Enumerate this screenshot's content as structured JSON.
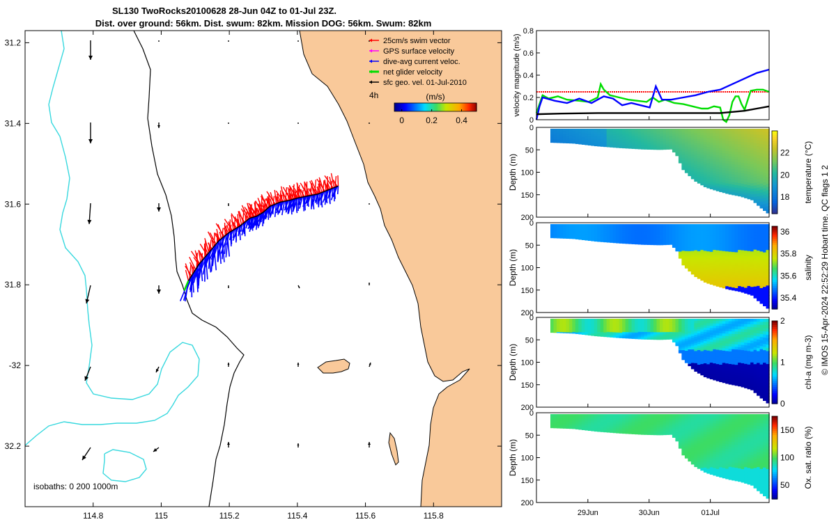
{
  "title": {
    "line1": "SL130 TwoRocks20100628 28-Jun 04Z to 01-Jul 23Z.",
    "line2": "Dist. over ground: 56km. Dist. swum: 82km. Mission DOG: 56km. Swum: 82km"
  },
  "colors": {
    "land": "#f9c99a",
    "isobath_200": "#000000",
    "isobath_1000": "#37d8de",
    "swim": "#ff0000",
    "gps": "#ff00ff",
    "current": "#0000ff",
    "net": "#00dd00",
    "geo": "#000000"
  },
  "map": {
    "xlim": [
      114.6,
      116.0
    ],
    "ylim": [
      -32.35,
      -31.17
    ],
    "x_ticks": [
      114.8,
      115,
      115.2,
      115.4,
      115.6,
      115.8
    ],
    "x_tick_labels": [
      "114.8",
      "115",
      "115.2",
      "115.4",
      "115.6",
      "115.8"
    ],
    "y_ticks": [
      -31.2,
      -31.4,
      -31.6,
      -31.8,
      -32,
      -32.2
    ],
    "y_tick_labels": [
      "31.2",
      "31.4",
      "31.6",
      "31.8",
      "-32",
      "32.2"
    ],
    "isobath_label": "isobaths: 0   200  1000m",
    "time_step_label": "4h",
    "legend": [
      {
        "label": "25cm/s swim vector",
        "color": "#ff0000"
      },
      {
        "label": "GPS surface velocity",
        "color": "#ff00ff"
      },
      {
        "label": "dive-avg current veloc.",
        "color": "#0000ff"
      },
      {
        "label": "net glider velocity",
        "color": "#00dd00"
      },
      {
        "label": "sfc geo. vel. 01-Jul-2010",
        "color": "#000000"
      }
    ],
    "colorbar": {
      "label": "(m/s)",
      "range": [
        -0.05,
        0.5
      ],
      "ticks": [
        0,
        0.2,
        0.4
      ],
      "tick_labels": [
        "0",
        "0.2",
        "0.4"
      ]
    },
    "track": [
      [
        115.08,
        -31.79
      ],
      [
        115.11,
        -31.75
      ],
      [
        115.14,
        -31.72
      ],
      [
        115.17,
        -31.69
      ],
      [
        115.2,
        -31.67
      ],
      [
        115.23,
        -31.655
      ],
      [
        115.26,
        -31.635
      ],
      [
        115.28,
        -31.63
      ],
      [
        115.3,
        -31.62
      ],
      [
        115.32,
        -31.605
      ],
      [
        115.35,
        -31.595
      ],
      [
        115.38,
        -31.59
      ],
      [
        115.4,
        -31.585
      ],
      [
        115.43,
        -31.58
      ],
      [
        115.46,
        -31.575
      ],
      [
        115.49,
        -31.565
      ],
      [
        115.52,
        -31.555
      ]
    ]
  },
  "velocity_panel": {
    "ylabel": "velocity magnitude (m/s)",
    "ylim": [
      0,
      0.8
    ],
    "y_ticks": [
      0,
      0.2,
      0.4,
      0.6,
      0.8
    ],
    "y_tick_labels": [
      "0",
      "0.2",
      "0.4",
      "0.6",
      "0.8"
    ],
    "series": [
      {
        "name": "swim speed",
        "color": "#ff0000",
        "t": [
          0.0,
          3.8
        ],
        "v": [
          0.25,
          0.25
        ]
      },
      {
        "name": "net glider velocity",
        "color": "#00dd00",
        "t": [
          0.0,
          0.05,
          0.1,
          0.2,
          0.35,
          0.5,
          0.7,
          0.85,
          1.0,
          1.05,
          1.1,
          1.2,
          1.35,
          1.5,
          1.65,
          1.8,
          1.9,
          2.0,
          2.1,
          2.25,
          2.4,
          2.55,
          2.7,
          2.8,
          2.9,
          3.0,
          3.05,
          3.1,
          3.15,
          3.2,
          3.25,
          3.3,
          3.35,
          3.4,
          3.5,
          3.6,
          3.7,
          3.8
        ],
        "v": [
          0.06,
          0.14,
          0.22,
          0.19,
          0.21,
          0.18,
          0.17,
          0.16,
          0.2,
          0.32,
          0.27,
          0.22,
          0.2,
          0.18,
          0.17,
          0.16,
          0.2,
          0.16,
          0.18,
          0.15,
          0.14,
          0.12,
          0.1,
          0.1,
          0.12,
          0.11,
          0.0,
          -0.05,
          0.04,
          0.16,
          0.21,
          0.21,
          0.14,
          0.09,
          0.26,
          0.27,
          0.27,
          0.25
        ]
      },
      {
        "name": "dive-avg current veloc.",
        "color": "#0000ff",
        "t": [
          0.0,
          0.05,
          0.1,
          0.3,
          0.5,
          0.7,
          0.9,
          1.0,
          1.1,
          1.25,
          1.4,
          1.55,
          1.7,
          1.85,
          1.95,
          2.05,
          2.2,
          2.4,
          2.6,
          2.8,
          3.0,
          3.2,
          3.4,
          3.6,
          3.8
        ],
        "v": [
          0.0,
          0.12,
          0.2,
          0.17,
          0.15,
          0.19,
          0.15,
          0.18,
          0.21,
          0.19,
          0.13,
          0.15,
          0.13,
          0.11,
          0.3,
          0.18,
          0.18,
          0.2,
          0.22,
          0.25,
          0.27,
          0.32,
          0.37,
          0.42,
          0.45
        ]
      },
      {
        "name": "sfc geo. vel.",
        "color": "#000000",
        "t": [
          0.0,
          0.05,
          0.4,
          1.0,
          1.6,
          2.2,
          2.8,
          3.0,
          3.2,
          3.4,
          3.6,
          3.8
        ],
        "v": [
          0.05,
          0.05,
          0.055,
          0.06,
          0.06,
          0.06,
          0.06,
          0.06,
          0.07,
          0.08,
          0.1,
          0.12
        ]
      }
    ]
  },
  "time_axis": {
    "t_range": [
      0.0,
      3.8
    ],
    "tick_positions": [
      0.84,
      1.84,
      2.84
    ],
    "tick_labels": [
      "29Jun",
      "30Jun",
      "01Jul"
    ]
  },
  "section_panels": [
    {
      "ylabel": "Depth (m)",
      "ylim": [
        0,
        200
      ],
      "y_ticks": [
        0,
        50,
        100,
        150,
        200
      ],
      "y_tick_labels": [
        "0",
        "50",
        "100",
        "150",
        "200"
      ],
      "cbar_label": "temperature (°C)",
      "cbar_range": [
        16.5,
        24
      ],
      "cbar_ticks": [
        18,
        20,
        22
      ],
      "cbar_tick_labels": [
        "18",
        "20",
        "22"
      ],
      "cmap": "parula",
      "profile": "temp"
    },
    {
      "ylabel": "Depth (m)",
      "ylim": [
        0,
        200
      ],
      "y_ticks": [
        0,
        50,
        100,
        150,
        200
      ],
      "y_tick_labels": [
        "0",
        "50",
        "100",
        "150",
        "200"
      ],
      "cbar_label": "salinity",
      "cbar_range": [
        35.3,
        36.05
      ],
      "cbar_ticks": [
        35.4,
        35.6,
        35.8,
        36
      ],
      "cbar_tick_labels": [
        "35.4",
        "35.6",
        "35.8",
        "36"
      ],
      "cmap": "jet",
      "profile": "sal"
    },
    {
      "ylabel": "Depth (m)",
      "ylim": [
        0,
        200
      ],
      "y_ticks": [
        0,
        50,
        100,
        150,
        200
      ],
      "y_tick_labels": [
        "0",
        "50",
        "100",
        "150",
        "200"
      ],
      "cbar_label": "chl-a (mg m-3)",
      "cbar_range": [
        0,
        2
      ],
      "cbar_ticks": [
        0,
        1,
        2
      ],
      "cbar_tick_labels": [
        "0",
        "1",
        "2"
      ],
      "cmap": "jet",
      "profile": "chl"
    },
    {
      "ylabel": "Depth (m)",
      "ylim": [
        0,
        200
      ],
      "y_ticks": [
        0,
        50,
        100,
        150,
        200
      ],
      "y_tick_labels": [
        "0",
        "50",
        "100",
        "150",
        "200"
      ],
      "cbar_label": "Ox. sat. ratio (%)",
      "cbar_range": [
        25,
        175
      ],
      "cbar_ticks": [
        50,
        100,
        150
      ],
      "cbar_tick_labels": [
        "50",
        "100",
        "150"
      ],
      "cmap": "jet",
      "profile": "ox"
    }
  ],
  "bottom_depth": {
    "t": [
      0.0,
      0.4,
      0.8,
      1.2,
      1.6,
      1.9,
      2.1,
      2.2,
      2.3,
      2.5,
      2.7,
      2.9,
      3.1,
      3.3,
      3.5,
      3.65,
      3.8
    ],
    "d": [
      30,
      32,
      38,
      42,
      45,
      46,
      45,
      60,
      90,
      115,
      130,
      138,
      145,
      150,
      158,
      175,
      190
    ]
  },
  "footer": {
    "credit": "© IMOS 15-Apr-2024 22:52:29 Hobart time. QC flags 1  2"
  }
}
